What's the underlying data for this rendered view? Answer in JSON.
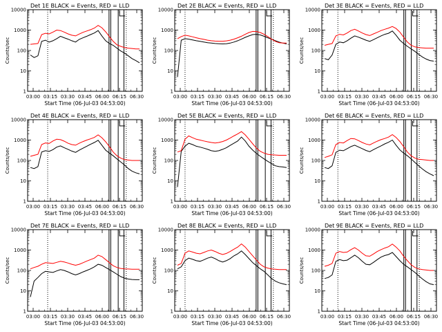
{
  "chart_data": [
    {
      "type": "line",
      "panel": "det-1",
      "title": "Det 1E BLACK = Events, RED = LLD",
      "ylabel": "Counts/sec",
      "xlabel": "Start Time (06-Jul-03 04:53:00)",
      "x_ticks": [
        "03:00",
        "03:15",
        "03:30",
        "03:45",
        "06:00",
        "06:15",
        "06:30"
      ],
      "y_ticks": [
        "1",
        "10",
        "100",
        "1000",
        "10000"
      ],
      "ylim": [
        1,
        10000
      ],
      "series": [
        {
          "name": "Events",
          "color": "#000000",
          "values": [
            60,
            45,
            55,
            280,
            320,
            260,
            300,
            380,
            500,
            420,
            360,
            300,
            260,
            350,
            420,
            500,
            600,
            720,
            950,
            520,
            300,
            220,
            180,
            130,
            95,
            75,
            55,
            40,
            32,
            25
          ]
        },
        {
          "name": "LLD",
          "color": "#ff0000",
          "values": [
            200,
            210,
            220,
            600,
            700,
            650,
            800,
            1000,
            950,
            800,
            650,
            560,
            520,
            640,
            780,
            900,
            1050,
            1250,
            1700,
            1300,
            820,
            480,
            280,
            190,
            160,
            140,
            130,
            125,
            120,
            120
          ]
        }
      ]
    },
    {
      "type": "line",
      "panel": "det-2",
      "title": "Det 2E BLACK = Events, RED = LLD",
      "ylabel": "Counts/sec",
      "xlabel": "Start Time (06-Jul-03 04:53:00)",
      "x_ticks": [
        "03:00",
        "03:15",
        "03:30",
        "03:45",
        "06:00",
        "06:15",
        "06:30"
      ],
      "y_ticks": [
        "1",
        "10",
        "100",
        "1000",
        "10000"
      ],
      "ylim": [
        1,
        10000
      ],
      "series": [
        {
          "name": "Events",
          "color": "#000000",
          "values": [
            5,
            320,
            380,
            360,
            330,
            300,
            280,
            260,
            240,
            230,
            220,
            215,
            210,
            215,
            230,
            260,
            300,
            360,
            440,
            520,
            600,
            620,
            580,
            500,
            420,
            360,
            300,
            260,
            230,
            210
          ]
        },
        {
          "name": "LLD",
          "color": "#ff0000",
          "values": [
            380,
            480,
            560,
            520,
            470,
            420,
            380,
            350,
            320,
            300,
            290,
            285,
            285,
            295,
            320,
            360,
            420,
            500,
            620,
            760,
            860,
            850,
            760,
            620,
            480,
            360,
            280,
            240,
            230,
            230
          ]
        }
      ]
    },
    {
      "type": "line",
      "panel": "det-3",
      "title": "Det 3E BLACK = Events, RED = LLD",
      "ylabel": "Counts/sec",
      "xlabel": "Start Time (06-Jul-03 04:53:00)",
      "x_ticks": [
        "03:00",
        "03:15",
        "03:30",
        "03:45",
        "06:00",
        "06:15",
        "06:30"
      ],
      "y_ticks": [
        "1",
        "10",
        "100",
        "1000",
        "10000"
      ],
      "ylim": [
        1,
        10000
      ],
      "series": [
        {
          "name": "Events",
          "color": "#000000",
          "values": [
            40,
            35,
            60,
            200,
            260,
            240,
            300,
            400,
            520,
            450,
            380,
            320,
            280,
            340,
            420,
            520,
            620,
            700,
            900,
            560,
            320,
            220,
            160,
            120,
            90,
            65,
            48,
            38,
            32,
            30
          ]
        },
        {
          "name": "LLD",
          "color": "#ff0000",
          "values": [
            180,
            200,
            220,
            520,
            620,
            580,
            720,
            950,
            1100,
            900,
            720,
            600,
            540,
            650,
            780,
            950,
            1100,
            1250,
            1500,
            1200,
            800,
            450,
            260,
            180,
            150,
            140,
            135,
            130,
            130,
            130
          ]
        }
      ]
    },
    {
      "type": "line",
      "panel": "det-4",
      "title": "Det 4E BLACK = Events, RED = LLD",
      "ylabel": "Counts/sec",
      "xlabel": "Start Time (06-Jul-03 04:53:00)",
      "x_ticks": [
        "03:00",
        "03:15",
        "03:30",
        "03:45",
        "06:00",
        "06:15",
        "06:30"
      ],
      "y_ticks": [
        "1",
        "10",
        "100",
        "1000",
        "10000"
      ],
      "ylim": [
        1,
        10000
      ],
      "series": [
        {
          "name": "Events",
          "color": "#000000",
          "values": [
            45,
            40,
            50,
            260,
            300,
            280,
            340,
            450,
            520,
            420,
            350,
            290,
            250,
            320,
            400,
            500,
            620,
            760,
            980,
            560,
            320,
            230,
            170,
            120,
            85,
            60,
            40,
            30,
            25,
            22
          ]
        },
        {
          "name": "LLD",
          "color": "#ff0000",
          "values": [
            160,
            180,
            200,
            600,
            720,
            680,
            900,
            1100,
            1050,
            880,
            700,
            600,
            560,
            700,
            850,
            1000,
            1150,
            1350,
            1800,
            1300,
            820,
            480,
            260,
            170,
            130,
            110,
            105,
            100,
            100,
            100
          ]
        }
      ]
    },
    {
      "type": "line",
      "panel": "det-5",
      "title": "Det 5E BLACK = Events, RED = LLD",
      "ylabel": "Counts/sec",
      "xlabel": "Start Time (06-Jul-03 04:53:00)",
      "x_ticks": [
        "03:00",
        "03:15",
        "03:30",
        "03:45",
        "06:00",
        "06:15",
        "06:30"
      ],
      "y_ticks": [
        "1",
        "10",
        "100",
        "1000",
        "10000"
      ],
      "ylim": [
        1,
        10000
      ],
      "series": [
        {
          "name": "Events",
          "color": "#000000",
          "values": [
            5,
            280,
            500,
            700,
            600,
            500,
            450,
            400,
            350,
            300,
            280,
            300,
            350,
            420,
            550,
            700,
            900,
            1400,
            900,
            500,
            320,
            220,
            160,
            120,
            90,
            70,
            55,
            50,
            48,
            45
          ]
        },
        {
          "name": "LLD",
          "color": "#ff0000",
          "values": [
            260,
            300,
            1100,
            1600,
            1300,
            1100,
            1000,
            900,
            820,
            760,
            720,
            760,
            850,
            1000,
            1250,
            1600,
            2000,
            2600,
            1800,
            1100,
            650,
            400,
            280,
            230,
            200,
            190,
            185,
            180,
            180,
            180
          ]
        }
      ]
    },
    {
      "type": "line",
      "panel": "det-6",
      "title": "Det 6E BLACK = Events, RED = LLD",
      "ylabel": "Counts/sec",
      "xlabel": "Start Time (06-Jul-03 04:53:00)",
      "x_ticks": [
        "03:00",
        "03:15",
        "03:30",
        "03:45",
        "06:00",
        "06:15",
        "06:30"
      ],
      "y_ticks": [
        "1",
        "10",
        "100",
        "1000",
        "10000"
      ],
      "ylim": [
        1,
        10000
      ],
      "series": [
        {
          "name": "Events",
          "color": "#000000",
          "values": [
            45,
            40,
            55,
            250,
            320,
            300,
            380,
            480,
            560,
            460,
            380,
            310,
            270,
            340,
            420,
            520,
            650,
            780,
            1000,
            560,
            330,
            230,
            170,
            120,
            80,
            55,
            38,
            28,
            22,
            18
          ]
        },
        {
          "name": "LLD",
          "color": "#ff0000",
          "values": [
            140,
            160,
            190,
            600,
            760,
            720,
            950,
            1200,
            1150,
            950,
            760,
            640,
            580,
            720,
            880,
            1050,
            1200,
            1400,
            1850,
            1350,
            850,
            480,
            260,
            170,
            130,
            115,
            110,
            105,
            100,
            100
          ]
        }
      ]
    },
    {
      "type": "line",
      "panel": "det-7",
      "title": "Det 7E BLACK = Events, RED = LLD",
      "ylabel": "Counts/sec",
      "xlabel": "Start Time (06-Jul-03 04:53:00)",
      "x_ticks": [
        "03:00",
        "03:15",
        "03:30",
        "03:45",
        "06:00",
        "06:15",
        "06:30"
      ],
      "y_ticks": [
        "1",
        "10",
        "100",
        "1000",
        "10000"
      ],
      "ylim": [
        1,
        10000
      ],
      "series": [
        {
          "name": "Events",
          "color": "#000000",
          "values": [
            5,
            30,
            45,
            70,
            90,
            85,
            80,
            95,
            110,
            100,
            85,
            70,
            60,
            70,
            85,
            100,
            120,
            150,
            200,
            180,
            140,
            110,
            85,
            65,
            50,
            42,
            38,
            36,
            35,
            35
          ]
        },
        {
          "name": "LLD",
          "color": "#ff0000",
          "values": [
            120,
            140,
            160,
            200,
            240,
            230,
            220,
            250,
            280,
            260,
            230,
            200,
            180,
            200,
            240,
            290,
            340,
            400,
            560,
            480,
            340,
            240,
            170,
            140,
            125,
            120,
            118,
            115,
            115,
            115
          ]
        }
      ]
    },
    {
      "type": "line",
      "panel": "det-8",
      "title": "Det 8E BLACK = Events, RED = LLD",
      "ylabel": "Counts/sec",
      "xlabel": "Start Time (06-Jul-03 04:53:00)",
      "x_ticks": [
        "03:00",
        "03:15",
        "03:30",
        "03:45",
        "06:00",
        "06:15",
        "06:30"
      ],
      "y_ticks": [
        "1",
        "10",
        "100",
        "1000",
        "10000"
      ],
      "ylim": [
        1,
        10000
      ],
      "series": [
        {
          "name": "Events",
          "color": "#000000",
          "values": [
            120,
            150,
            300,
            400,
            350,
            300,
            280,
            330,
            400,
            450,
            380,
            300,
            260,
            300,
            380,
            520,
            650,
            900,
            600,
            380,
            240,
            170,
            120,
            90,
            60,
            40,
            30,
            25,
            22,
            20
          ]
        },
        {
          "name": "LLD",
          "color": "#ff0000",
          "values": [
            180,
            220,
            700,
            900,
            800,
            700,
            650,
            760,
            900,
            1000,
            850,
            700,
            600,
            680,
            850,
            1100,
            1400,
            2000,
            1400,
            850,
            520,
            320,
            200,
            150,
            130,
            120,
            115,
            110,
            110,
            110
          ]
        }
      ]
    },
    {
      "type": "line",
      "panel": "det-9",
      "title": "Det 9E BLACK = Events, RED = LLD",
      "ylabel": "Counts/sec",
      "xlabel": "Start Time (06-Jul-03 04:53:00)",
      "x_ticks": [
        "03:00",
        "03:15",
        "03:30",
        "03:45",
        "06:00",
        "06:15",
        "06:30"
      ],
      "y_ticks": [
        "1",
        "10",
        "100",
        "1000",
        "10000"
      ],
      "ylim": [
        1,
        10000
      ],
      "series": [
        {
          "name": "Events",
          "color": "#000000",
          "values": [
            40,
            45,
            60,
            280,
            340,
            300,
            320,
            420,
            560,
            420,
            280,
            200,
            190,
            250,
            340,
            450,
            540,
            600,
            760,
            480,
            300,
            200,
            150,
            110,
            80,
            55,
            38,
            28,
            22,
            20
          ]
        },
        {
          "name": "LLD",
          "color": "#ff0000",
          "values": [
            160,
            180,
            220,
            700,
            850,
            760,
            800,
            1050,
            1300,
            1000,
            700,
            520,
            500,
            640,
            850,
            1050,
            1250,
            1450,
            1950,
            1400,
            900,
            500,
            300,
            190,
            140,
            120,
            110,
            105,
            100,
            100
          ]
        }
      ]
    }
  ]
}
